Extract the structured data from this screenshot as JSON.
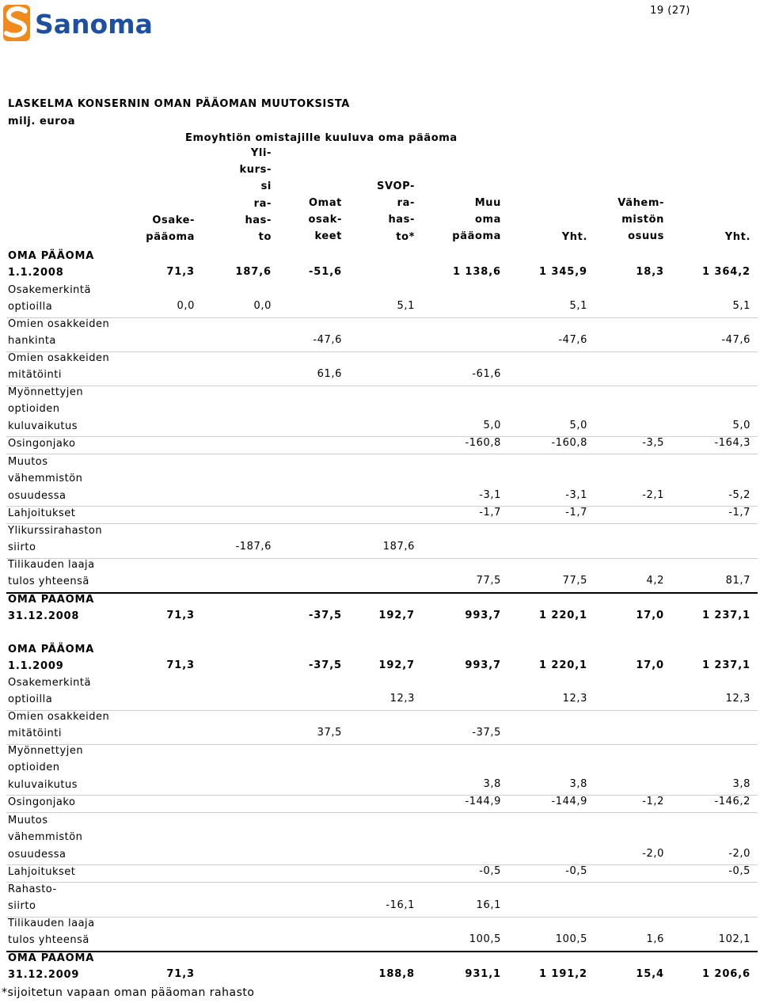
{
  "header": {
    "logo_text": "Sanoma",
    "page_number": "19 (27)",
    "brand_colors": {
      "logo_blue": "#1f4fa0",
      "logo_orange": "#f08a1c"
    }
  },
  "document": {
    "title": "LASKELMA KONSERNIN OMAN PÄÄOMAN MUUTOKSISTA",
    "unit": "milj. euroa",
    "group_header": "Emoyhtiön omistajille kuuluva oma pääoma"
  },
  "columns": [
    {
      "id": "osake",
      "header": "Osake-\npääoma"
    },
    {
      "id": "ylikurssi",
      "header": "Yli-\nkurs-\nsi\nra-\nhas-\nto"
    },
    {
      "id": "omat",
      "header": "Omat\nosak-\nkeet"
    },
    {
      "id": "svop",
      "header": "SVOP-\nra-\nhas-\nto*"
    },
    {
      "id": "muu",
      "header": "Muu\noma\npääoma"
    },
    {
      "id": "yht1",
      "header": "Yht."
    },
    {
      "id": "vahem",
      "header": "Vähem-\nmistön\nosuus"
    },
    {
      "id": "yht2",
      "header": "Yht."
    }
  ],
  "sections": [
    {
      "rows": [
        {
          "label": "OMA PÄÄOMA\n1.1.2008",
          "bold": true,
          "values": [
            "71,3",
            "187,6",
            "-51,6",
            "",
            "1 138,6",
            "1 345,9",
            "18,3",
            "1 364,2"
          ]
        },
        {
          "label": "Osakemerkintä\noptioilla",
          "values": [
            "0,0",
            "0,0",
            "",
            "5,1",
            "",
            "5,1",
            "",
            "5,1"
          ]
        },
        {
          "label": "Omien osakkeiden\nhankinta",
          "values": [
            "",
            "",
            "-47,6",
            "",
            "",
            "-47,6",
            "",
            "-47,6"
          ]
        },
        {
          "label": "Omien osakkeiden\nmitätöinti",
          "values": [
            "",
            "",
            "61,6",
            "",
            "-61,6",
            "",
            "",
            ""
          ]
        },
        {
          "label": "Myönnettyjen\noptioiden\nkuluvaikutus",
          "values": [
            "",
            "",
            "",
            "",
            "5,0",
            "5,0",
            "",
            "5,0"
          ]
        },
        {
          "label": "Osingonjako",
          "values": [
            "",
            "",
            "",
            "",
            "-160,8",
            "-160,8",
            "-3,5",
            "-164,3"
          ]
        },
        {
          "label": "Muutos\nvähemmistön\nosuudessa",
          "values": [
            "",
            "",
            "",
            "",
            "-3,1",
            "-3,1",
            "-2,1",
            "-5,2"
          ]
        },
        {
          "label": "Lahjoitukset",
          "values": [
            "",
            "",
            "",
            "",
            "-1,7",
            "-1,7",
            "",
            "-1,7"
          ]
        },
        {
          "label": "Ylikurssirahaston\nsiirto",
          "values": [
            "",
            "-187,6",
            "",
            "187,6",
            "",
            "",
            "",
            ""
          ]
        },
        {
          "label": "Tilikauden laaja\ntulos yhteensä",
          "values": [
            "",
            "",
            "",
            "",
            "77,5",
            "77,5",
            "4,2",
            "81,7"
          ]
        },
        {
          "label": "OMA PÄÄOMA\n31.12.2008",
          "bold": true,
          "values": [
            "71,3",
            "",
            "-37,5",
            "192,7",
            "993,7",
            "1 220,1",
            "17,0",
            "1 237,1"
          ]
        }
      ]
    },
    {
      "rows": [
        {
          "label": "OMA PÄÄOMA\n1.1.2009",
          "bold": true,
          "values": [
            "71,3",
            "",
            "-37,5",
            "192,7",
            "993,7",
            "1 220,1",
            "17,0",
            "1 237,1"
          ]
        },
        {
          "label": "Osakemerkintä\noptioilla",
          "values": [
            "",
            "",
            "",
            "12,3",
            "",
            "12,3",
            "",
            "12,3"
          ]
        },
        {
          "label": "Omien osakkeiden\nmitätöinti",
          "values": [
            "",
            "",
            "37,5",
            "",
            "-37,5",
            "",
            "",
            ""
          ]
        },
        {
          "label": "Myönnettyjen\noptioiden\nkuluvaikutus",
          "values": [
            "",
            "",
            "",
            "",
            "3,8",
            "3,8",
            "",
            "3,8"
          ]
        },
        {
          "label": "Osingonjako",
          "values": [
            "",
            "",
            "",
            "",
            "-144,9",
            "-144,9",
            "-1,2",
            "-146,2"
          ]
        },
        {
          "label": "Muutos\nvähemmistön\nosuudessa",
          "values": [
            "",
            "",
            "",
            "",
            "",
            "",
            "-2,0",
            "-2,0"
          ]
        },
        {
          "label": "Lahjoitukset",
          "values": [
            "",
            "",
            "",
            "",
            "-0,5",
            "-0,5",
            "",
            "-0,5"
          ]
        },
        {
          "label": "Rahasto-\nsiirto",
          "values": [
            "",
            "",
            "",
            "-16,1",
            "16,1",
            "",
            "",
            ""
          ]
        },
        {
          "label": "Tilikauden laaja\ntulos yhteensä",
          "values": [
            "",
            "",
            "",
            "",
            "100,5",
            "100,5",
            "1,6",
            "102,1"
          ]
        },
        {
          "label": "OMA PÄÄOMA\n31.12.2009",
          "bold": true,
          "values": [
            "71,3",
            "",
            "",
            "188,8",
            "931,1",
            "1 191,2",
            "15,4",
            "1 206,6"
          ]
        }
      ]
    }
  ],
  "footnote": "*sijoitetun vapaan oman pääoman rahasto"
}
